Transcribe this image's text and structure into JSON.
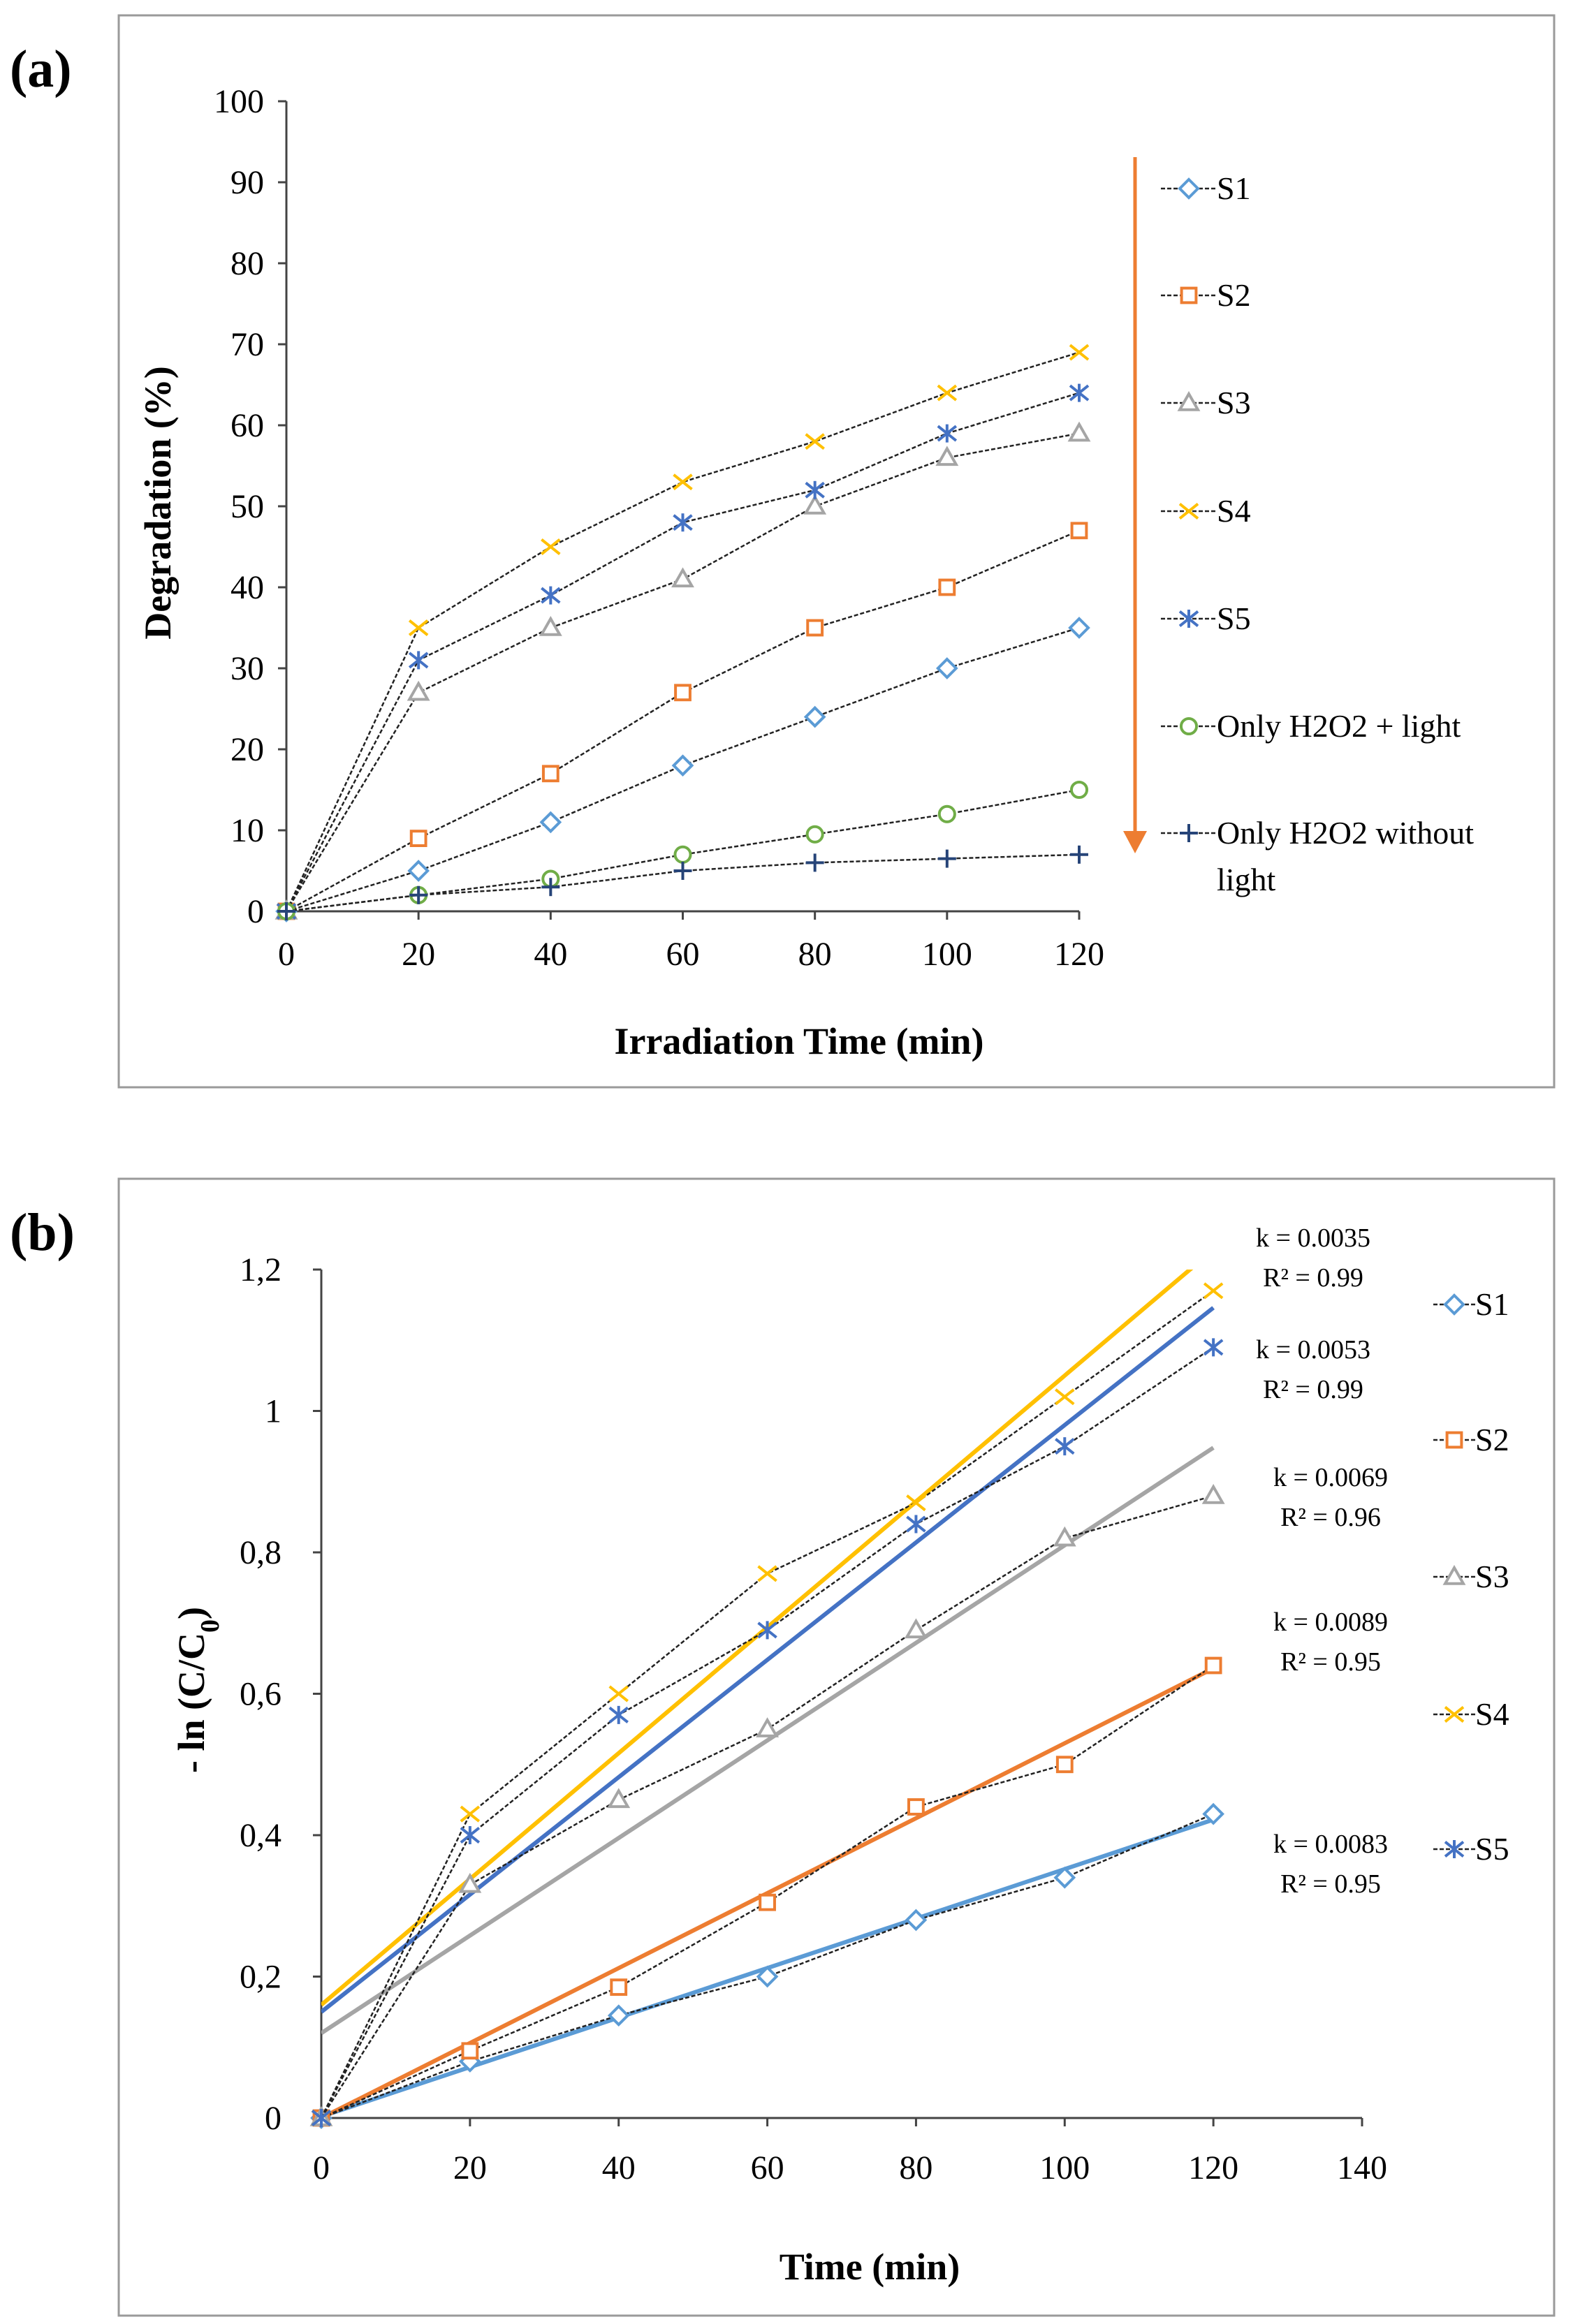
{
  "chart_data": [
    {
      "panel": "(a)",
      "type": "line",
      "title": "",
      "xlabel": "Irradiation Time (min)",
      "ylabel": "Degradation (%)",
      "xlim": [
        0,
        120
      ],
      "ylim": [
        0,
        100
      ],
      "x_ticks": [
        0,
        20,
        40,
        60,
        80,
        100,
        120
      ],
      "y_ticks": [
        0,
        10,
        20,
        30,
        40,
        50,
        60,
        70,
        80,
        90,
        100
      ],
      "grid": false,
      "legend_position": "right",
      "x": [
        0,
        20,
        40,
        60,
        80,
        100,
        120
      ],
      "series": [
        {
          "name": "S1",
          "marker": "diamond",
          "color": "#5B9BD5",
          "values": [
            0,
            5,
            11,
            18,
            24,
            30,
            35
          ]
        },
        {
          "name": "S2",
          "marker": "square",
          "color": "#ED7D31",
          "values": [
            0,
            9,
            17,
            27,
            35,
            40,
            47
          ]
        },
        {
          "name": "S3",
          "marker": "triangle",
          "color": "#A5A5A5",
          "values": [
            0,
            27,
            35,
            41,
            50,
            56,
            59
          ]
        },
        {
          "name": "S4",
          "marker": "x",
          "color": "#FFC000",
          "values": [
            0,
            35,
            45,
            53,
            58,
            64,
            69
          ]
        },
        {
          "name": "S5",
          "marker": "star",
          "color": "#4472C4",
          "values": [
            0,
            31,
            39,
            48,
            52,
            59,
            64
          ]
        },
        {
          "name": "Only H2O2 + light",
          "marker": "circle",
          "color": "#70AD47",
          "values": [
            0,
            2,
            4,
            7,
            9.5,
            12,
            15
          ]
        },
        {
          "name": "Only H2O2 without light",
          "name_line2": "light",
          "name_line1": "Only H2O2 without",
          "marker": "plus",
          "color": "#264478",
          "values": [
            0,
            2,
            3,
            5,
            6,
            6.5,
            7
          ]
        }
      ],
      "arrow_color": "#ED7D31"
    },
    {
      "panel": "(b)",
      "type": "line",
      "title": "",
      "xlabel": "Time (min)",
      "ylabel": "- ln (C/C",
      "ylabel_sub": "0",
      "ylabel_close": ")",
      "xlim": [
        0,
        140
      ],
      "ylim": [
        0,
        1.2
      ],
      "x_ticks": [
        0,
        20,
        40,
        60,
        80,
        100,
        120,
        140
      ],
      "y_ticks": [
        "0",
        "0,2",
        "0,4",
        "0,6",
        "0,8",
        "1",
        "1,2"
      ],
      "y_tick_values": [
        0,
        0.2,
        0.4,
        0.6,
        0.8,
        1.0,
        1.2
      ],
      "grid": false,
      "legend_position": "right",
      "x": [
        0,
        20,
        40,
        60,
        80,
        100,
        120
      ],
      "series": [
        {
          "name": "S1",
          "marker": "diamond",
          "color": "#5B9BD5",
          "values": [
            0,
            0.08,
            0.145,
            0.2,
            0.28,
            0.34,
            0.43
          ],
          "trend": [
            0.002,
            0.0035
          ]
        },
        {
          "name": "S2",
          "marker": "square",
          "color": "#ED7D31",
          "values": [
            0,
            0.095,
            0.185,
            0.305,
            0.44,
            0.5,
            0.64
          ],
          "trend": [
            0.0,
            0.0053
          ]
        },
        {
          "name": "S3",
          "marker": "triangle",
          "color": "#A5A5A5",
          "values": [
            0,
            0.33,
            0.45,
            0.55,
            0.69,
            0.82,
            0.88
          ],
          "trend": [
            0.12,
            0.0069
          ]
        },
        {
          "name": "S4",
          "marker": "x",
          "color": "#FFC000",
          "values": [
            0,
            0.43,
            0.6,
            0.77,
            0.87,
            1.02,
            1.17
          ],
          "trend": [
            0.16,
            0.0089
          ]
        },
        {
          "name": "S5",
          "marker": "star",
          "color": "#4472C4",
          "values": [
            0,
            0.4,
            0.57,
            0.69,
            0.84,
            0.95,
            1.09
          ],
          "trend": [
            0.15,
            0.0083
          ]
        }
      ],
      "annotations": [
        {
          "k": "k = 0.0035",
          "r2": "R² = 0.99"
        },
        {
          "k": "k = 0.0053",
          "r2": "R² = 0.99"
        },
        {
          "k": "k = 0.0069",
          "r2": "R² = 0.96"
        },
        {
          "k": "k = 0.0089",
          "r2": "R² = 0.95"
        },
        {
          "k": "k = 0.0083",
          "r2": "R² = 0.95"
        }
      ]
    }
  ]
}
